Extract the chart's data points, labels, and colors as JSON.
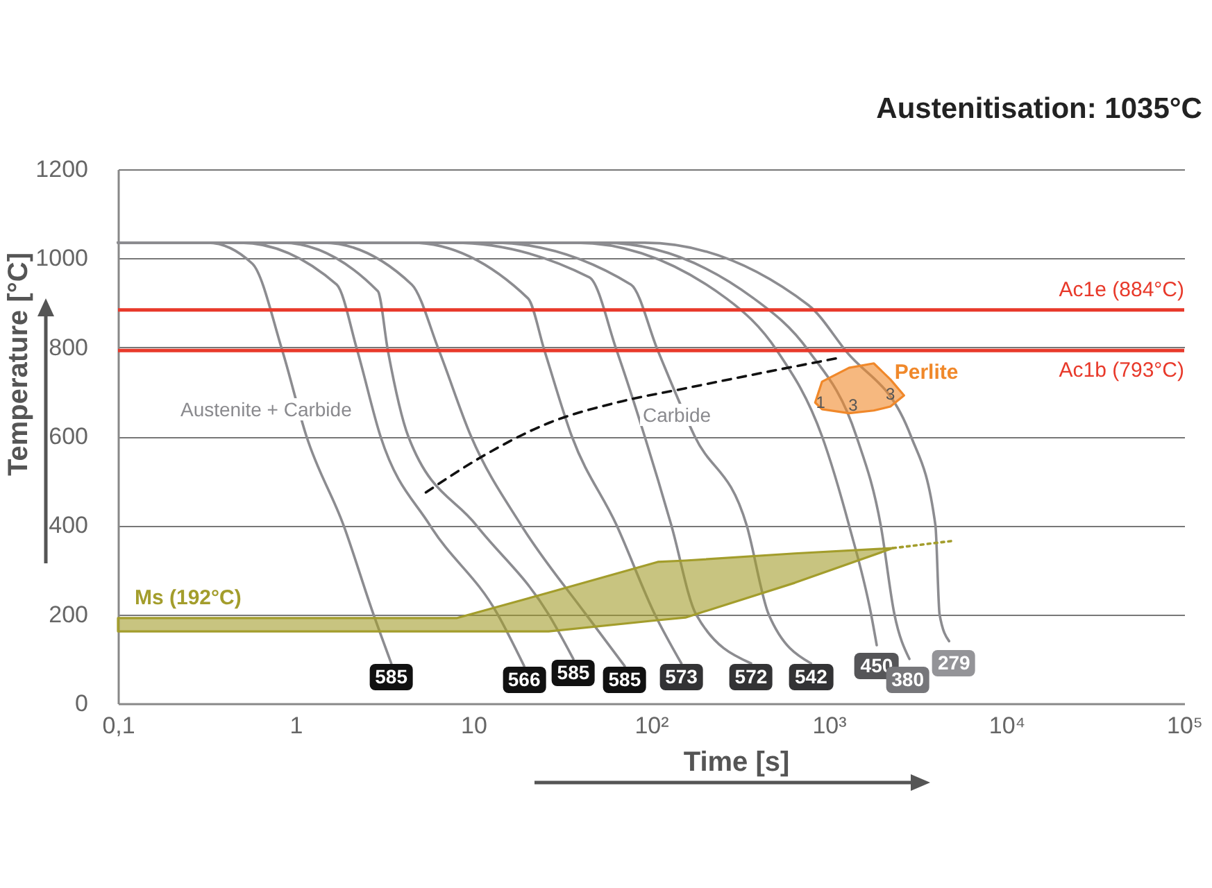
{
  "chart_data": {
    "type": "line",
    "title": "Austenitisation: 1035°C",
    "xlabel": "Time [s]",
    "ylabel": "Temperature [°C]",
    "log": "x",
    "xlim": [
      0.1,
      100000
    ],
    "ylim": [
      0,
      1200
    ],
    "xticks": [
      {
        "value": 0.1,
        "label": "0,1"
      },
      1,
      10,
      {
        "value": 100,
        "label": "10²"
      },
      {
        "value": 1000,
        "label": "10³"
      },
      {
        "value": 10000,
        "label": "10⁴"
      },
      {
        "value": 100000,
        "label": "10⁵"
      }
    ],
    "yticks": [
      0,
      200,
      400,
      600,
      800,
      1000,
      1200
    ],
    "grid": "y",
    "series": [
      {
        "color": "#8c8c90",
        "x": [
          0.1,
          0.32,
          0.57,
          0.84,
          1.15,
          1.86,
          2.74,
          3.45
        ],
        "values": [
          1035,
          1035,
          988,
          793,
          600,
          400,
          200,
          90
        ]
      },
      {
        "color": "#8c8c90",
        "x": [
          0.1,
          0.49,
          1.7,
          2.22,
          3.0,
          5.7,
          13.7,
          19.3
        ],
        "values": [
          1035,
          1035,
          941,
          793,
          600,
          400,
          200,
          84
        ]
      },
      {
        "color": "#8c8c90",
        "x": [
          0.1,
          0.84,
          2.9,
          3.3,
          4.3,
          10.4,
          26.5,
          36.5
        ],
        "values": [
          1035,
          1035,
          926,
          793,
          600,
          400,
          200,
          100
        ]
      },
      {
        "color": "#8c8c90",
        "x": [
          0.1,
          1.43,
          4.5,
          6.4,
          9.7,
          18.6,
          43,
          71
        ],
        "values": [
          1035,
          1035,
          941,
          793,
          600,
          400,
          200,
          84
        ]
      },
      {
        "color": "#8c8c90",
        "x": [
          0.1,
          4.5,
          20.3,
          25.1,
          35.8,
          64,
          105,
          148
        ],
        "values": [
          1035,
          1035,
          910,
          793,
          600,
          400,
          200,
          90
        ]
      },
      {
        "color": "#8c8c90",
        "x": [
          0.1,
          7.7,
          45,
          64,
          92,
          130,
          179,
          365
        ],
        "values": [
          1035,
          1035,
          957,
          793,
          600,
          400,
          200,
          90
        ]
      },
      {
        "color": "#8c8c90",
        "x": [
          0.1,
          13,
          77,
          109,
          176,
          345,
          459,
          794
        ],
        "values": [
          1035,
          1035,
          941,
          793,
          600,
          400,
          200,
          90
        ]
      },
      {
        "color": "#8c8c90",
        "x": [
          0.1,
          38,
          265,
          510,
          916,
          1300,
          1730,
          1860
        ],
        "values": [
          1035,
          1035,
          910,
          793,
          600,
          400,
          200,
          131
        ]
      },
      {
        "color": "#8c8c90",
        "x": [
          0.1,
          54,
          378,
          767,
          1430,
          1960,
          2340,
          2840
        ],
        "values": [
          1035,
          1035,
          910,
          793,
          600,
          400,
          200,
          100
        ]
      },
      {
        "color": "#8c8c90",
        "x": [
          0.1,
          92,
          767,
          1240,
          2900,
          3980,
          4200,
          4750
        ],
        "values": [
          1035,
          1035,
          895,
          793,
          600,
          400,
          200,
          140
        ]
      },
      {
        "color": "#111111",
        "line_style": "dashed",
        "x": [
          5.4,
          10.9,
          26.5,
          64,
          156,
          451,
          1130
        ],
        "values": [
          474,
          552,
          630,
          676,
          708,
          745,
          776
        ]
      },
      {
        "type": "line",
        "name": "Ms (192°C)",
        "color": "#a39d2c",
        "x": [
          0.1,
          8.1,
          26.5,
          109,
          156,
          643,
          2300
        ],
        "values": [
          null,
          null,
          null,
          null,
          null,
          null,
          null
        ],
        "upper": [
          192,
          192,
          249,
          318,
          321,
          337,
          349
        ],
        "lower": [
          162,
          162,
          162,
          187,
          193,
          271,
          349
        ]
      },
      {
        "color": "#a39d2c",
        "line_style": "dotted",
        "x": [
          2300,
          4920
        ],
        "values": [
          349,
          365
        ]
      },
      {
        "type": "line",
        "name": "Perlite",
        "color": "#f0882a",
        "x": [
          838,
          916,
          1300,
          1790,
          2220,
          2650
        ],
        "values": [
          null,
          null,
          null,
          null,
          null,
          null
        ],
        "upper": [
          676,
          723,
          754,
          764,
          728,
          692
        ],
        "lower": [
          676,
          661,
          652,
          658,
          667,
          692
        ]
      }
    ],
    "ref_lines": [
      {
        "axis": "y",
        "value": 884,
        "label": "Ac1e (884°C)",
        "color": "#e8392a"
      },
      {
        "axis": "y",
        "value": 793,
        "label": "Ac1b (793°C)",
        "color": "#e8392a"
      }
    ],
    "annotations": [
      "Austenite + Carbide",
      "Carbide",
      {
        "text": "1",
        "x": 900,
        "y": 676
      },
      {
        "text": "3",
        "x": 1370,
        "y": 670
      },
      {
        "text": "3",
        "x": 2220,
        "y": 695
      },
      {
        "text": "585",
        "x": 3.45,
        "y": 59
      },
      {
        "text": "566",
        "x": 19.3,
        "y": 53
      },
      {
        "text": "585",
        "x": 36.5,
        "y": 69
      },
      {
        "text": "585",
        "x": 71,
        "y": 53
      },
      {
        "text": "573",
        "x": 148,
        "y": 59
      },
      {
        "text": "572",
        "x": 365,
        "y": 59
      },
      {
        "text": "542",
        "x": 794,
        "y": 59
      },
      {
        "text": "450",
        "x": 1860,
        "y": 84
      },
      {
        "text": "380",
        "x": 2780,
        "y": 53
      },
      {
        "text": "279",
        "x": 5060,
        "y": 90
      }
    ]
  }
}
